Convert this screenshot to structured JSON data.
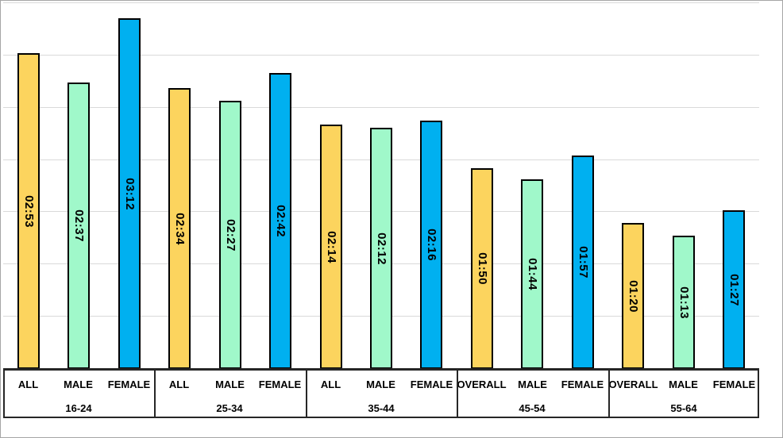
{
  "chart_data": {
    "type": "bar",
    "title": "",
    "legend": "none",
    "value_label_style": "rotated 90deg, centered inside bar, format h:mm",
    "gridlines": true,
    "gridline_intervals": 7,
    "groups": [
      {
        "label": "16-24",
        "bars": [
          {
            "category": "ALL",
            "value": "02:53"
          },
          {
            "category": "MALE",
            "value": "02:37"
          },
          {
            "category": "FEMALE",
            "value": "03:12"
          }
        ]
      },
      {
        "label": "25-34",
        "bars": [
          {
            "category": "ALL",
            "value": "02:34"
          },
          {
            "category": "MALE",
            "value": "02:27"
          },
          {
            "category": "FEMALE",
            "value": "02:42"
          }
        ]
      },
      {
        "label": "35-44",
        "bars": [
          {
            "category": "ALL",
            "value": "02:14"
          },
          {
            "category": "MALE",
            "value": "02:12"
          },
          {
            "category": "FEMALE",
            "value": "02:16"
          }
        ]
      },
      {
        "label": "45-54",
        "bars": [
          {
            "category": "OVERALL",
            "value": "01:50"
          },
          {
            "category": "MALE",
            "value": "01:44"
          },
          {
            "category": "FEMALE",
            "value": "01:57"
          }
        ]
      },
      {
        "label": "55-64",
        "bars": [
          {
            "category": "OVERALL",
            "value": "01:20"
          },
          {
            "category": "MALE",
            "value": "01:13"
          },
          {
            "category": "FEMALE",
            "value": "01:27"
          }
        ]
      }
    ],
    "colors": {
      "ALL": "#FCD45E",
      "OVERALL": "#FCD45E",
      "MALE": "#A0F8CA",
      "FEMALE": "#00B0F0"
    },
    "bar_border_color": "#000000",
    "gridline_color": "#D9D9D9",
    "axis_color": "#262626",
    "background_color": "#FFFFFF"
  }
}
